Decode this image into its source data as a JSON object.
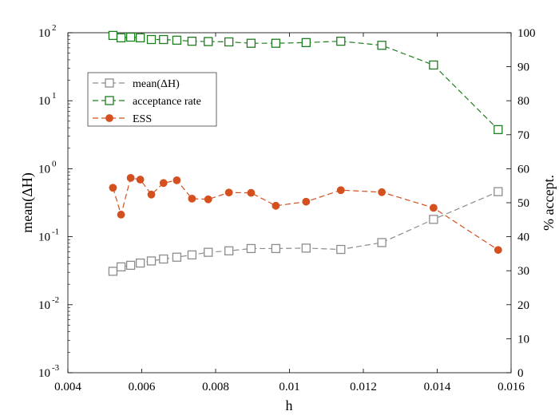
{
  "chart_data": {
    "type": "line",
    "xlabel": "h",
    "ylabel_left": "mean(ΔH)",
    "ylabel_right": "% accept.",
    "xlim": [
      0.004,
      0.016
    ],
    "ylim_left": [
      0.001,
      100
    ],
    "ylim_right": [
      0,
      100
    ],
    "yscale_left": "log",
    "yscale_right": "linear",
    "grid": false,
    "legend_position": "upper-left",
    "x_ticks": [
      "0.004",
      "0.006",
      "0.008",
      "0.01",
      "0.012",
      "0.014",
      "0.016"
    ],
    "y_right_ticks": [
      "0",
      "10",
      "20",
      "30",
      "40",
      "50",
      "60",
      "70",
      "80",
      "90",
      "100"
    ],
    "x": [
      0.00522,
      0.00544,
      0.0057,
      0.00596,
      0.00626,
      0.00659,
      0.00695,
      0.00736,
      0.0078,
      0.00836,
      0.00896,
      0.00963,
      0.01045,
      0.01139,
      0.0125,
      0.0139,
      0.01565
    ],
    "series": [
      {
        "name": "mean(ΔH)",
        "axis": "left",
        "color": "#8c8c8c",
        "marker": "square-open",
        "values": [
          0.031,
          0.036,
          0.038,
          0.041,
          0.044,
          0.047,
          0.05,
          0.054,
          0.059,
          0.062,
          0.067,
          0.067,
          0.068,
          0.065,
          0.082,
          0.18,
          0.46
        ]
      },
      {
        "name": "acceptance rate",
        "axis": "right",
        "color": "#1e7d1e",
        "marker": "square-open",
        "values": [
          99.2,
          98.5,
          98.7,
          98.5,
          98.0,
          98.0,
          97.8,
          97.5,
          97.4,
          97.3,
          96.9,
          96.9,
          97.1,
          97.5,
          96.3,
          90.5,
          71.5
        ]
      },
      {
        "name": "ESS",
        "axis": "right",
        "color": "#d4501e",
        "marker": "circle-filled",
        "values": [
          54.4,
          46.5,
          57.3,
          56.8,
          52.4,
          55.8,
          56.6,
          51.2,
          51.0,
          53.0,
          52.9,
          49.1,
          50.3,
          53.7,
          53.1,
          48.5,
          36.1
        ]
      }
    ]
  }
}
